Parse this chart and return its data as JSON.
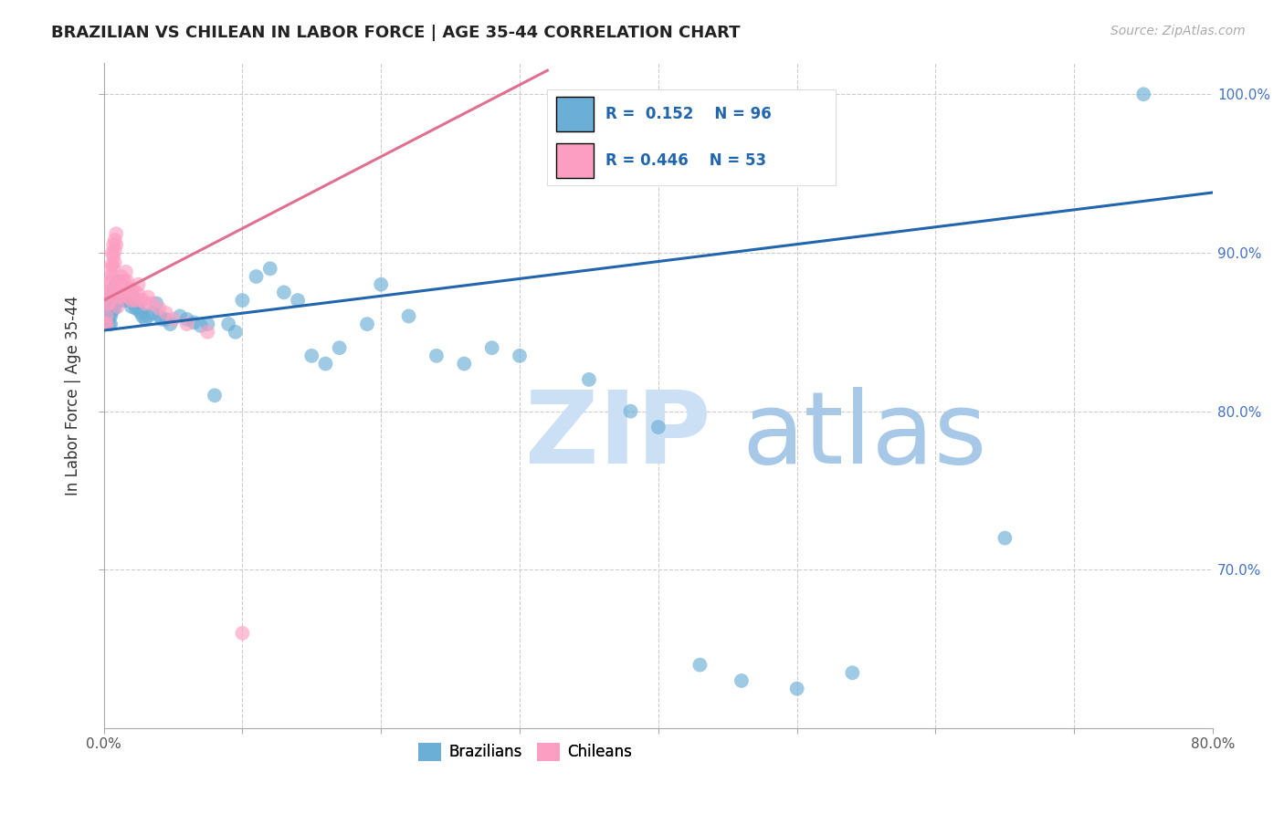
{
  "title": "BRAZILIAN VS CHILEAN IN LABOR FORCE | AGE 35-44 CORRELATION CHART",
  "source": "Source: ZipAtlas.com",
  "ylabel": "In Labor Force | Age 35-44",
  "xlim": [
    0.0,
    0.8
  ],
  "ylim": [
    0.6,
    1.02
  ],
  "x_ticks": [
    0.0,
    0.1,
    0.2,
    0.3,
    0.4,
    0.5,
    0.6,
    0.7,
    0.8
  ],
  "x_tick_labels": [
    "0.0%",
    "",
    "",
    "",
    "",
    "",
    "",
    "",
    "80.0%"
  ],
  "y_ticks": [
    0.7,
    0.8,
    0.9,
    1.0
  ],
  "y_tick_labels": [
    "70.0%",
    "80.0%",
    "90.0%",
    "100.0%"
  ],
  "x_grid": [
    0.1,
    0.2,
    0.3,
    0.4,
    0.5,
    0.6,
    0.7
  ],
  "brazilian_R": 0.152,
  "brazilian_N": 96,
  "chilean_R": 0.446,
  "chilean_N": 53,
  "blue_color": "#6baed6",
  "pink_color": "#fc9ec1",
  "blue_line_color": "#2166ac",
  "pink_line_color": "#e07090",
  "legend_label_blue": "Brazilians",
  "legend_label_pink": "Chileans",
  "background_color": "#ffffff",
  "grid_color": "#cccccc",
  "blue_line_x": [
    0.0,
    0.8
  ],
  "blue_line_y": [
    0.851,
    0.938
  ],
  "pink_line_x": [
    0.0,
    0.32
  ],
  "pink_line_y": [
    0.87,
    1.015
  ],
  "blue_x": [
    0.001,
    0.002,
    0.003,
    0.003,
    0.004,
    0.004,
    0.004,
    0.005,
    0.005,
    0.005,
    0.005,
    0.006,
    0.006,
    0.006,
    0.007,
    0.007,
    0.007,
    0.008,
    0.008,
    0.008,
    0.008,
    0.009,
    0.009,
    0.009,
    0.01,
    0.01,
    0.01,
    0.01,
    0.011,
    0.011,
    0.012,
    0.012,
    0.012,
    0.013,
    0.013,
    0.014,
    0.014,
    0.015,
    0.015,
    0.015,
    0.016,
    0.016,
    0.017,
    0.018,
    0.018,
    0.019,
    0.02,
    0.02,
    0.021,
    0.022,
    0.023,
    0.024,
    0.025,
    0.025,
    0.027,
    0.028,
    0.03,
    0.032,
    0.035,
    0.038,
    0.04,
    0.042,
    0.045,
    0.048,
    0.055,
    0.06,
    0.065,
    0.07,
    0.075,
    0.08,
    0.09,
    0.095,
    0.1,
    0.11,
    0.12,
    0.13,
    0.14,
    0.15,
    0.16,
    0.17,
    0.19,
    0.2,
    0.22,
    0.24,
    0.26,
    0.28,
    0.3,
    0.35,
    0.38,
    0.4,
    0.43,
    0.46,
    0.5,
    0.54,
    0.65,
    0.75
  ],
  "blue_y": [
    0.855,
    0.86,
    0.862,
    0.858,
    0.865,
    0.86,
    0.855,
    0.87,
    0.865,
    0.86,
    0.855,
    0.872,
    0.868,
    0.863,
    0.875,
    0.87,
    0.865,
    0.878,
    0.875,
    0.87,
    0.865,
    0.88,
    0.876,
    0.872,
    0.882,
    0.878,
    0.874,
    0.87,
    0.88,
    0.876,
    0.878,
    0.874,
    0.87,
    0.876,
    0.872,
    0.875,
    0.871,
    0.878,
    0.874,
    0.87,
    0.875,
    0.87,
    0.872,
    0.876,
    0.872,
    0.875,
    0.87,
    0.866,
    0.87,
    0.868,
    0.865,
    0.87,
    0.868,
    0.864,
    0.862,
    0.86,
    0.858,
    0.86,
    0.862,
    0.868,
    0.86,
    0.858,
    0.858,
    0.855,
    0.86,
    0.858,
    0.856,
    0.854,
    0.855,
    0.81,
    0.855,
    0.85,
    0.87,
    0.885,
    0.89,
    0.875,
    0.87,
    0.835,
    0.83,
    0.84,
    0.855,
    0.88,
    0.86,
    0.835,
    0.83,
    0.84,
    0.835,
    0.82,
    0.8,
    0.79,
    0.64,
    0.63,
    0.625,
    0.635,
    0.72,
    1.0
  ],
  "pink_x": [
    0.001,
    0.002,
    0.002,
    0.003,
    0.003,
    0.004,
    0.004,
    0.004,
    0.005,
    0.005,
    0.005,
    0.006,
    0.006,
    0.006,
    0.007,
    0.007,
    0.007,
    0.008,
    0.008,
    0.008,
    0.009,
    0.009,
    0.01,
    0.01,
    0.01,
    0.011,
    0.011,
    0.012,
    0.012,
    0.013,
    0.014,
    0.015,
    0.015,
    0.016,
    0.017,
    0.018,
    0.018,
    0.02,
    0.02,
    0.022,
    0.023,
    0.025,
    0.025,
    0.028,
    0.03,
    0.032,
    0.035,
    0.04,
    0.045,
    0.05,
    0.06,
    0.075,
    0.1
  ],
  "pink_y": [
    0.855,
    0.86,
    0.855,
    0.875,
    0.868,
    0.882,
    0.875,
    0.868,
    0.89,
    0.882,
    0.875,
    0.9,
    0.893,
    0.886,
    0.905,
    0.898,
    0.891,
    0.908,
    0.901,
    0.894,
    0.912,
    0.905,
    0.878,
    0.872,
    0.866,
    0.882,
    0.876,
    0.878,
    0.872,
    0.885,
    0.878,
    0.882,
    0.876,
    0.888,
    0.882,
    0.878,
    0.872,
    0.876,
    0.87,
    0.876,
    0.87,
    0.88,
    0.874,
    0.87,
    0.868,
    0.872,
    0.868,
    0.865,
    0.862,
    0.858,
    0.855,
    0.85,
    0.66
  ]
}
